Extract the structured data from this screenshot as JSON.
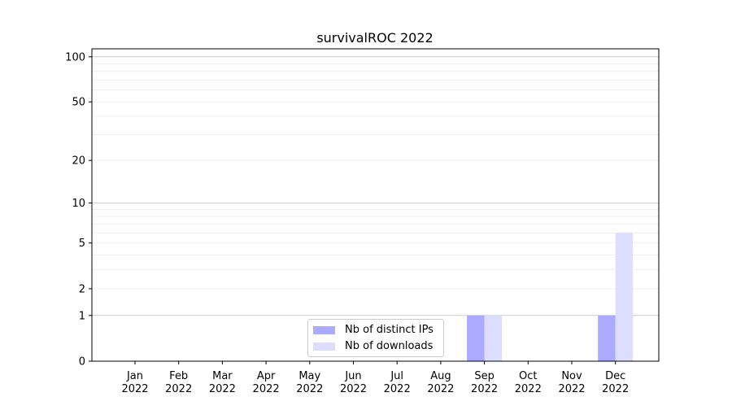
{
  "chart_data": {
    "type": "bar",
    "title": "survivalROC 2022",
    "xlabel": "",
    "ylabel": "",
    "yscale": "log(1+y)",
    "ylim": [
      0,
      113
    ],
    "yticks": [
      0,
      1,
      2,
      5,
      10,
      20,
      50,
      100
    ],
    "grid": true,
    "legend_position": "bottom-center",
    "categories": [
      "Jan\n2022",
      "Feb\n2022",
      "Mar\n2022",
      "Apr\n2022",
      "May\n2022",
      "Jun\n2022",
      "Jul\n2022",
      "Aug\n2022",
      "Sep\n2022",
      "Oct\n2022",
      "Nov\n2022",
      "Dec\n2022"
    ],
    "series": [
      {
        "name": "Nb of distinct IPs",
        "color": "#aaaaff",
        "values": [
          0,
          0,
          0,
          0,
          0,
          0,
          0,
          0,
          1,
          0,
          0,
          1
        ]
      },
      {
        "name": "Nb of downloads",
        "color": "#ddddff",
        "values": [
          0,
          0,
          0,
          0,
          0,
          0,
          0,
          0,
          1,
          0,
          0,
          6
        ]
      }
    ]
  }
}
